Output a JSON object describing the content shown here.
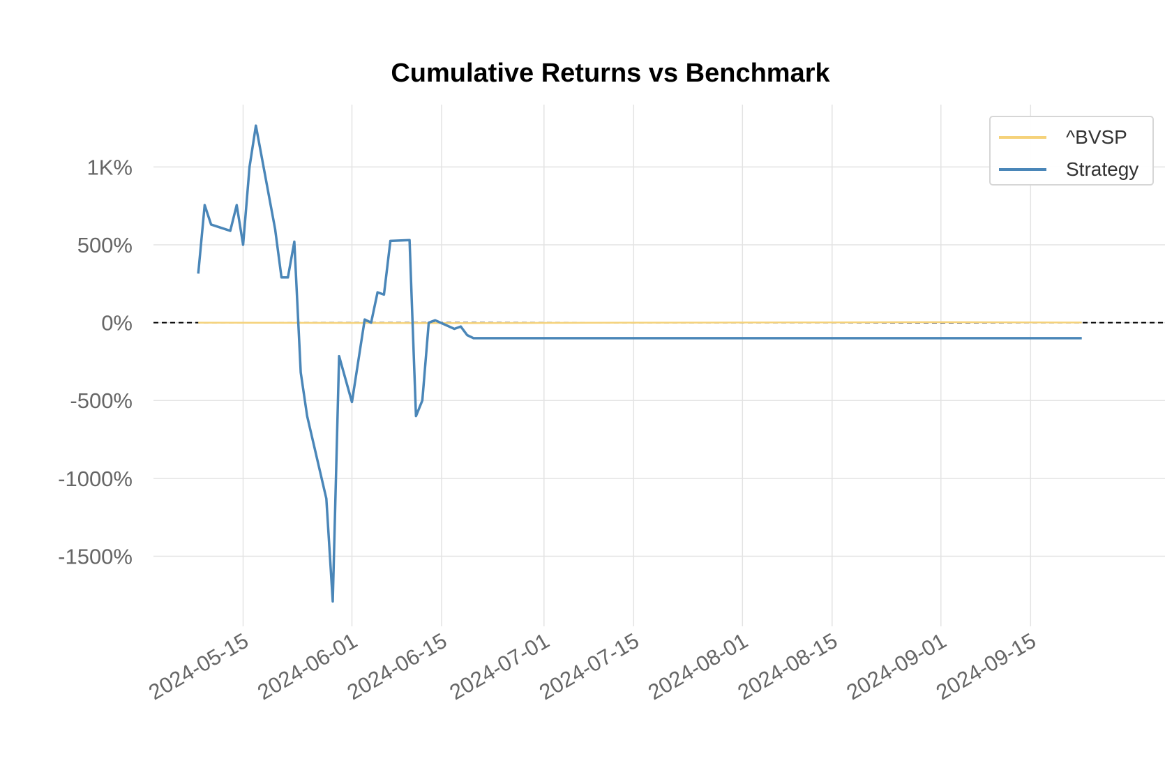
{
  "chart_data": {
    "type": "line",
    "title": "Cumulative Returns vs Benchmark",
    "xlabel": "",
    "ylabel": "",
    "x_ticks": [
      "2024-05-15",
      "2024-06-01",
      "2024-06-15",
      "2024-07-01",
      "2024-07-15",
      "2024-08-01",
      "2024-08-15",
      "2024-09-01",
      "2024-09-15"
    ],
    "y_ticks": [
      1000,
      500,
      0,
      -500,
      -1000,
      -1500
    ],
    "y_tick_labels": [
      "1K%",
      "500%",
      "0%",
      "-500%",
      "-1000%",
      "-1500%"
    ],
    "xlim": [
      "2024-05-01",
      "2024-10-06"
    ],
    "ylim": [
      -1950,
      1400
    ],
    "grid": true,
    "legend_position": "top-right",
    "reference_line": {
      "y": 0,
      "style": "dashed",
      "color": "#000000"
    },
    "series": [
      {
        "name": "^BVSP",
        "color": "#f5d27a",
        "points": [
          [
            "2024-05-08",
            0
          ],
          [
            "2024-05-31",
            -2
          ],
          [
            "2024-06-20",
            -3
          ],
          [
            "2024-07-15",
            0
          ],
          [
            "2024-08-01",
            1
          ],
          [
            "2024-08-15",
            2
          ],
          [
            "2024-09-01",
            3
          ],
          [
            "2024-09-15",
            2
          ],
          [
            "2024-09-23",
            1
          ]
        ]
      },
      {
        "name": "Strategy",
        "color": "#4a86b8",
        "points": [
          [
            "2024-05-08",
            315
          ],
          [
            "2024-05-09",
            755
          ],
          [
            "2024-05-10",
            630
          ],
          [
            "2024-05-13",
            590
          ],
          [
            "2024-05-14",
            755
          ],
          [
            "2024-05-15",
            500
          ],
          [
            "2024-05-16",
            1000
          ],
          [
            "2024-05-17",
            1265
          ],
          [
            "2024-05-20",
            600
          ],
          [
            "2024-05-21",
            290
          ],
          [
            "2024-05-22",
            290
          ],
          [
            "2024-05-23",
            520
          ],
          [
            "2024-05-24",
            -320
          ],
          [
            "2024-05-25",
            -600
          ],
          [
            "2024-05-28",
            -1130
          ],
          [
            "2024-05-29",
            -1790
          ],
          [
            "2024-05-30",
            -215
          ],
          [
            "2024-06-01",
            -510
          ],
          [
            "2024-06-03",
            20
          ],
          [
            "2024-06-04",
            0
          ],
          [
            "2024-06-05",
            195
          ],
          [
            "2024-06-06",
            180
          ],
          [
            "2024-06-07",
            525
          ],
          [
            "2024-06-10",
            530
          ],
          [
            "2024-06-11",
            -600
          ],
          [
            "2024-06-12",
            -500
          ],
          [
            "2024-06-13",
            0
          ],
          [
            "2024-06-14",
            15
          ],
          [
            "2024-06-17",
            -40
          ],
          [
            "2024-06-18",
            -25
          ],
          [
            "2024-06-19",
            -80
          ],
          [
            "2024-06-20",
            -100
          ],
          [
            "2024-07-15",
            -100
          ],
          [
            "2024-08-15",
            -100
          ],
          [
            "2024-09-23",
            -100
          ]
        ]
      }
    ]
  }
}
